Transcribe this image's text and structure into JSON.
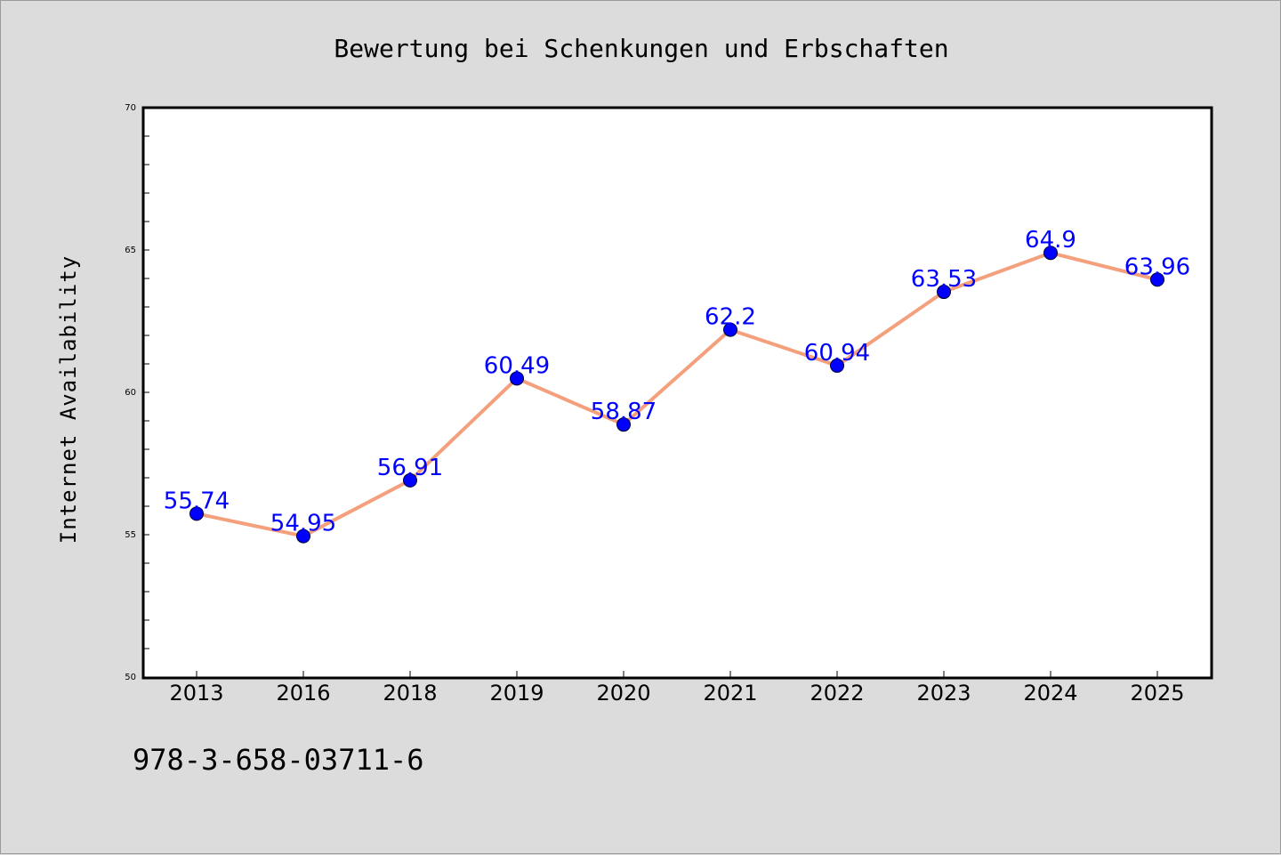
{
  "chart_data": {
    "type": "line",
    "title": "Bewertung bei Schenkungen und Erbschaften",
    "xlabel": "",
    "ylabel": "Internet Availability",
    "categories": [
      "2013",
      "2016",
      "2018",
      "2019",
      "2020",
      "2021",
      "2022",
      "2023",
      "2024",
      "2025"
    ],
    "series": [
      {
        "values": [
          55.74,
          54.95,
          56.91,
          60.49,
          58.87,
          62.2,
          60.94,
          63.53,
          64.9,
          63.96
        ],
        "data_labels": [
          "55.74",
          "54.95",
          "56.91",
          "60.49",
          "58.87",
          "62.2",
          "60.94",
          "63.53",
          "64.9",
          "63.96"
        ],
        "line_color": "#f4a07c",
        "marker_color": "#0000ff"
      }
    ],
    "ylim": [
      50,
      70
    ],
    "y_ticks": [
      50,
      55,
      60,
      65,
      70
    ],
    "y_tick_labels": [
      "50",
      "55",
      "60",
      "65",
      "70"
    ],
    "grid": false,
    "legend": "none"
  },
  "footer": {
    "code": "978-3-658-03711-6"
  },
  "colors": {
    "background": "#dcdcdc",
    "plot_background": "#ffffff",
    "line": "#f4a07c",
    "marker": "#0000ff",
    "data_label": "#0000ff"
  }
}
